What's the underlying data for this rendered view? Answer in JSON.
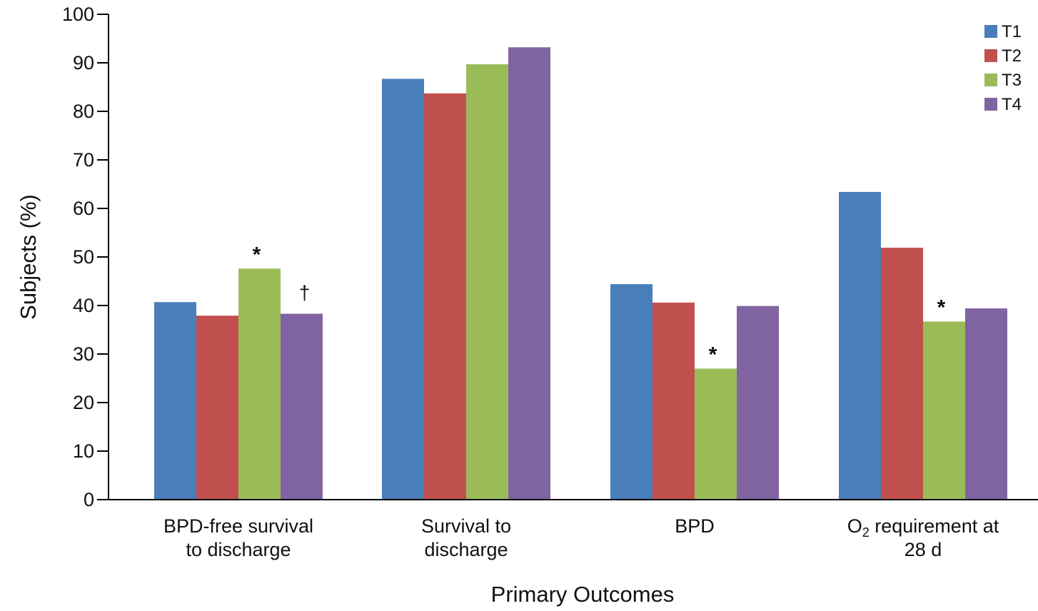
{
  "chart_data": {
    "type": "bar",
    "xlabel": "Primary Outcomes",
    "ylabel": "Subjects (%)",
    "ylim": [
      0,
      100
    ],
    "yticks": [
      0,
      10,
      20,
      30,
      40,
      50,
      60,
      70,
      80,
      90,
      100
    ],
    "categories": [
      [
        "BPD-free survival",
        "to discharge"
      ],
      [
        "Survival to",
        "discharge"
      ],
      [
        "BPD"
      ],
      [
        "O",
        "2",
        " requirement at",
        "28 d"
      ]
    ],
    "series": [
      {
        "name": "T1",
        "color": "#4a7ebb",
        "values": [
          40.7,
          86.7,
          44.4,
          63.4
        ]
      },
      {
        "name": "T2",
        "color": "#c0504d",
        "values": [
          37.9,
          83.7,
          40.6,
          51.9
        ]
      },
      {
        "name": "T3",
        "color": "#9bbb59",
        "values": [
          47.6,
          89.7,
          27.0,
          36.7
        ]
      },
      {
        "name": "T4",
        "color": "#8064a2",
        "values": [
          38.3,
          93.2,
          39.9,
          39.4
        ]
      }
    ],
    "annotations": [
      {
        "category": 0,
        "series": 2,
        "text": "*"
      },
      {
        "category": 0,
        "series": 3,
        "text": "†"
      },
      {
        "category": 2,
        "series": 2,
        "text": "*"
      },
      {
        "category": 3,
        "series": 2,
        "text": "*"
      }
    ],
    "legend": {
      "placement": "top-right"
    },
    "grid": false
  }
}
